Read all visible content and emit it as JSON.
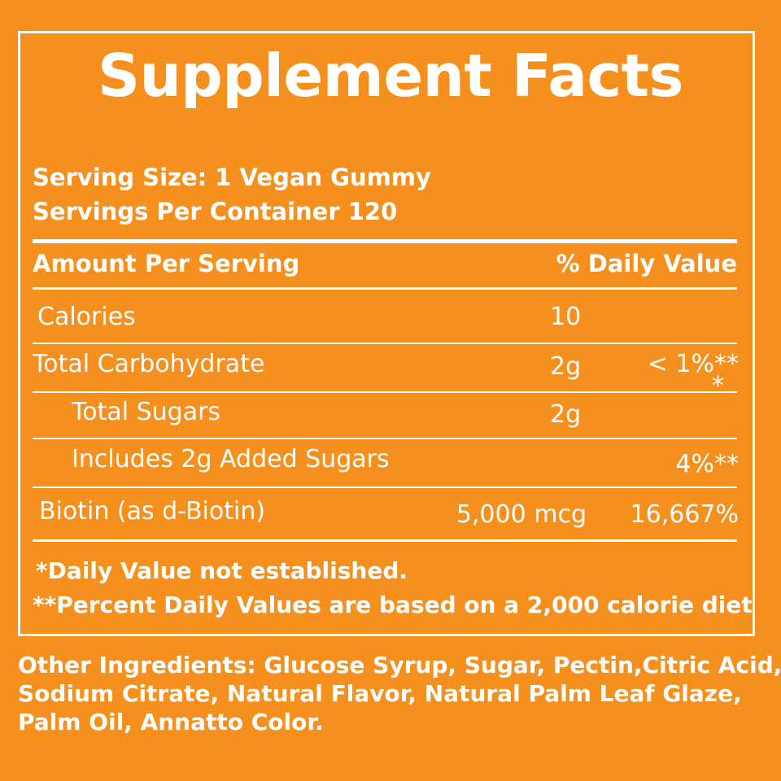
{
  "title": "Supplement Facts",
  "serving_size": "Serving Size: 1 Vegan Gummy",
  "servings_per_container": "Servings Per Container 120",
  "header": {
    "amount_label": "Amount Per Serving",
    "dv_label": "% Daily Value"
  },
  "rows": [
    {
      "name": "Calories",
      "amount": "10",
      "dv": ""
    },
    {
      "name": "Total Carbohydrate",
      "amount": "2g",
      "dv": "< 1%**",
      "dv_extra": "*"
    },
    {
      "name": "Total Sugars",
      "amount": "2g",
      "dv": ""
    },
    {
      "name": "Includes 2g Added Sugars",
      "amount": "",
      "dv": "4%**"
    },
    {
      "name": "Biotin (as d-Biotin)",
      "amount": "5,000 mcg",
      "dv": "16,667%"
    }
  ],
  "footnotes": [
    "*Daily Value not established.",
    "**Percent Daily Values are based on a 2,000 calorie diet"
  ],
  "ingredients_lines": [
    "Other Ingredients: Glucose Syrup, Sugar, Pectin,Citric Acid,",
    "Sodium Citrate, Natural Flavor, Natural Palm Leaf Glaze,",
    "Palm Oil, Annatto Color."
  ],
  "colors": {
    "background": "#f5901e",
    "text": "#ffffff"
  }
}
